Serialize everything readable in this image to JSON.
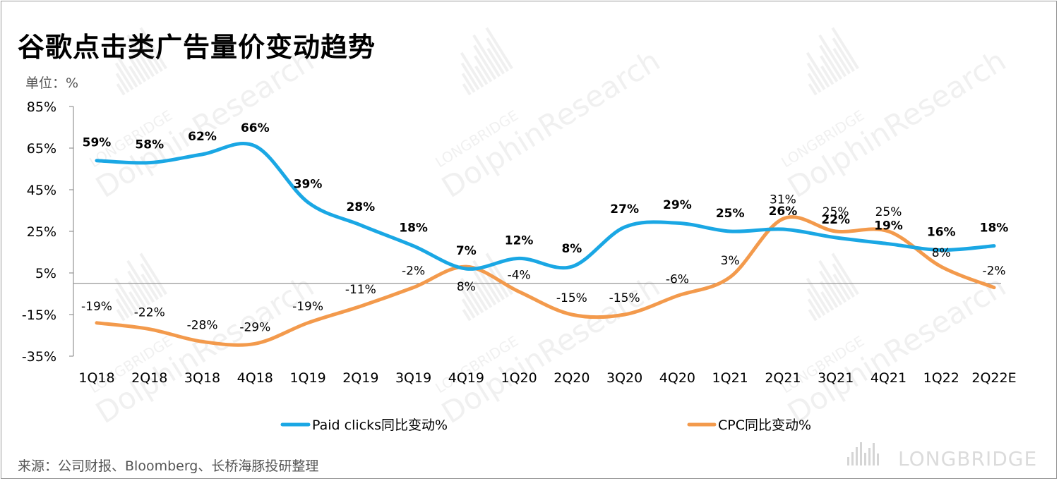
{
  "title": "谷歌点击类广告量价变动趋势",
  "unit_label": "单位：%",
  "source": "来源：公司财报、Bloomberg、长桥海豚投研整理",
  "watermark": {
    "line1": "LONGBRIDGE",
    "line2": "DolphinResearch",
    "corner": "LONGBRIDGE"
  },
  "colors": {
    "paid_clicks": "#1aa7e4",
    "cpc": "#f39a4c"
  },
  "chart_data": {
    "type": "line",
    "categories": [
      "1Q18",
      "2Q18",
      "3Q18",
      "4Q18",
      "1Q19",
      "2Q19",
      "3Q19",
      "4Q19",
      "1Q20",
      "2Q20",
      "3Q20",
      "4Q20",
      "1Q21",
      "2Q21",
      "3Q21",
      "4Q21",
      "1Q22",
      "2Q22E"
    ],
    "ylim": [
      -35,
      85
    ],
    "yticks": [
      85,
      65,
      45,
      25,
      5,
      -15,
      -35
    ],
    "ytick_labels": [
      "85%",
      "65%",
      "45%",
      "25%",
      "5%",
      "-15%",
      "-35%"
    ],
    "series": [
      {
        "name": "Paid clicks同比变动%",
        "values": [
          59,
          58,
          62,
          66,
          39,
          28,
          18,
          7,
          12,
          8,
          27,
          29,
          25,
          26,
          22,
          19,
          16,
          18
        ],
        "labels": [
          "59%",
          "58%",
          "62%",
          "66%",
          "39%",
          "28%",
          "18%",
          "7%",
          "12%",
          "8%",
          "27%",
          "29%",
          "25%",
          "26%",
          "22%",
          "19%",
          "16%",
          "18%"
        ]
      },
      {
        "name": "CPC同比变动%",
        "values": [
          -19,
          -22,
          -28,
          -29,
          -19,
          -11,
          -2,
          8,
          -4,
          -15,
          -15,
          -6,
          3,
          31,
          25,
          25,
          8,
          -2
        ],
        "labels": [
          "-19%",
          "-22%",
          "-28%",
          "-29%",
          "-19%",
          "-11%",
          "-2%",
          "8%",
          "-4%",
          "-15%",
          "-15%",
          "-6%",
          "3%",
          "31%",
          "25%",
          "25%",
          "8%",
          "-2%"
        ]
      }
    ],
    "grid": false,
    "legend": "bottom"
  }
}
